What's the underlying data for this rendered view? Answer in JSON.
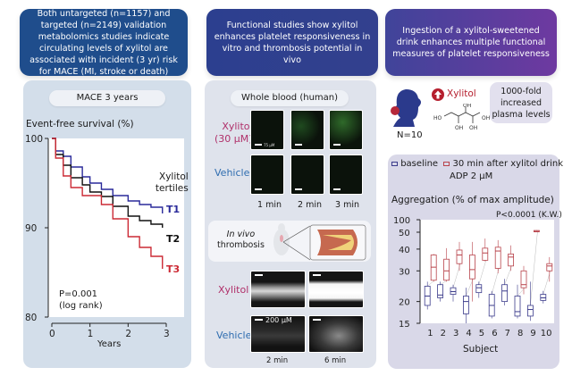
{
  "headers": [
    "Both untargeted (n=1157) and targeted (n=2149) validation metabolomics studies indicate circulating levels of xylitol are associated with incident (3 yr) risk for MACE (MI, stroke or death)",
    "Functional studies show xylitol enhances platelet responsiveness in vitro and thrombosis potential in vivo",
    "Ingestion of a xylitol-sweetened drink enhances multiple functional measures of platelet responsiveness"
  ],
  "panel1": {
    "pill": "MACE 3 years",
    "ylabel": "Event-free survival (%)",
    "legend_title": [
      "Xylitol",
      "tertiles"
    ],
    "series_labels": [
      "T1",
      "T2",
      "T3"
    ],
    "stat_text": [
      "P=0.001",
      "(log rank)"
    ],
    "xlabel": "Years"
  },
  "panel2": {
    "pill": "Whole blood (human)",
    "row_labels": [
      "Xylitol",
      "(30 µM)",
      "Vehicle"
    ],
    "scale_label": "75 µM",
    "time_labels": [
      "1 min",
      "2 min",
      "3 min"
    ],
    "inset_label": [
      "In vivo",
      "thrombosis"
    ],
    "thrombo_rows": [
      "Xylitol",
      "Vehicle"
    ],
    "thrombo_scale": "200 µM",
    "thrombo_times": [
      "2 min",
      "6 min"
    ]
  },
  "panel3": {
    "up_label": "Xylitol",
    "n_label": "N=10",
    "fold_box": [
      "1000-fold",
      "increased",
      "plasma levels"
    ],
    "molecule_labels": [
      "HO",
      "OH",
      "OH",
      "OH",
      "OH"
    ],
    "legend": [
      "baseline",
      "30 min after xylitol drink"
    ],
    "agonist": "ADP 2 µM",
    "ylabel": "Aggregation (% of max amplitude)",
    "stat": "P<0.0001 (K.W.)",
    "xlabel": "Subject"
  },
  "colors": {
    "t1": "#2a2a9a",
    "t2": "#111111",
    "t3": "#cc2a35",
    "baseline": "#3a3a8a",
    "post": "#b8424a",
    "xylitol_label": "#b0306a",
    "vehicle_label": "#2f6db0"
  },
  "chart_data": [
    {
      "type": "line",
      "title": "MACE 3 years",
      "xlabel": "Years",
      "ylabel": "Event-free survival (%)",
      "xlim": [
        0,
        3
      ],
      "ylim": [
        80,
        100
      ],
      "xticks": [
        0,
        1,
        2,
        3
      ],
      "yticks": [
        80,
        90,
        100
      ],
      "annotation": "P=0.001 (log rank)",
      "legend": "right",
      "series": [
        {
          "name": "T1",
          "x": [
            0,
            0.1,
            0.3,
            0.5,
            0.8,
            1.0,
            1.3,
            1.6,
            2.0,
            2.3,
            2.6,
            2.9
          ],
          "y": [
            100,
            98.6,
            98.0,
            96.8,
            95.7,
            95.0,
            94.3,
            93.6,
            93.0,
            92.6,
            92.3,
            91.6
          ]
        },
        {
          "name": "T2",
          "x": [
            0,
            0.1,
            0.3,
            0.5,
            0.8,
            1.0,
            1.3,
            1.6,
            2.0,
            2.3,
            2.6,
            2.9
          ],
          "y": [
            100,
            98.2,
            97.0,
            95.6,
            94.8,
            94.0,
            93.5,
            92.4,
            91.3,
            90.8,
            90.4,
            90.0
          ]
        },
        {
          "name": "T3",
          "x": [
            0,
            0.1,
            0.3,
            0.5,
            0.8,
            1.0,
            1.3,
            1.6,
            2.0,
            2.3,
            2.6,
            2.9
          ],
          "y": [
            100,
            97.8,
            95.8,
            94.5,
            93.6,
            93.6,
            92.6,
            91.0,
            89.0,
            87.8,
            86.8,
            85.4
          ]
        }
      ]
    },
    {
      "type": "box",
      "title": "Aggregation (% of max amplitude)",
      "subtitle": "ADP 2 µM",
      "xlabel": "Subject",
      "ylabel": "Aggregation (% of max amplitude)",
      "yscale": "log",
      "ylim": [
        15,
        100
      ],
      "yticks": [
        15,
        20,
        30,
        40,
        50,
        100
      ],
      "categories": [
        "1",
        "2",
        "3",
        "4",
        "5",
        "6",
        "7",
        "8",
        "9",
        "10"
      ],
      "annotation": "P<0.0001 (K.W.)",
      "series": [
        {
          "name": "baseline",
          "min": [
            18,
            20,
            20,
            15,
            21,
            16,
            19,
            16,
            15.5,
            19.5
          ],
          "q1": [
            19,
            21,
            22,
            17,
            22.5,
            16.5,
            20,
            16.5,
            16.5,
            20.3
          ],
          "median": [
            21.5,
            21.8,
            22.8,
            20,
            24,
            19,
            23,
            17.5,
            18,
            21
          ],
          "q3": [
            24.5,
            25,
            24,
            21.5,
            25,
            22,
            25,
            21.5,
            19,
            22
          ],
          "max": [
            26,
            26,
            25,
            24,
            26,
            23,
            27,
            25,
            26,
            23
          ]
        },
        {
          "name": "30 min after xylitol drink",
          "min": [
            26,
            26,
            30,
            20,
            34,
            29,
            30,
            22,
            50,
            26
          ],
          "q1": [
            26.5,
            26.5,
            33,
            27,
            34.5,
            31,
            32,
            24,
            51,
            30
          ],
          "median": [
            31.5,
            30,
            37,
            30.5,
            38,
            39,
            36,
            25,
            52,
            32
          ],
          "q3": [
            37,
            35,
            39.5,
            37,
            40.5,
            41,
            37.5,
            30,
            55,
            33
          ],
          "max": [
            37.5,
            40.5,
            44,
            44,
            46,
            45,
            42,
            32,
            56,
            36
          ]
        }
      ]
    }
  ]
}
